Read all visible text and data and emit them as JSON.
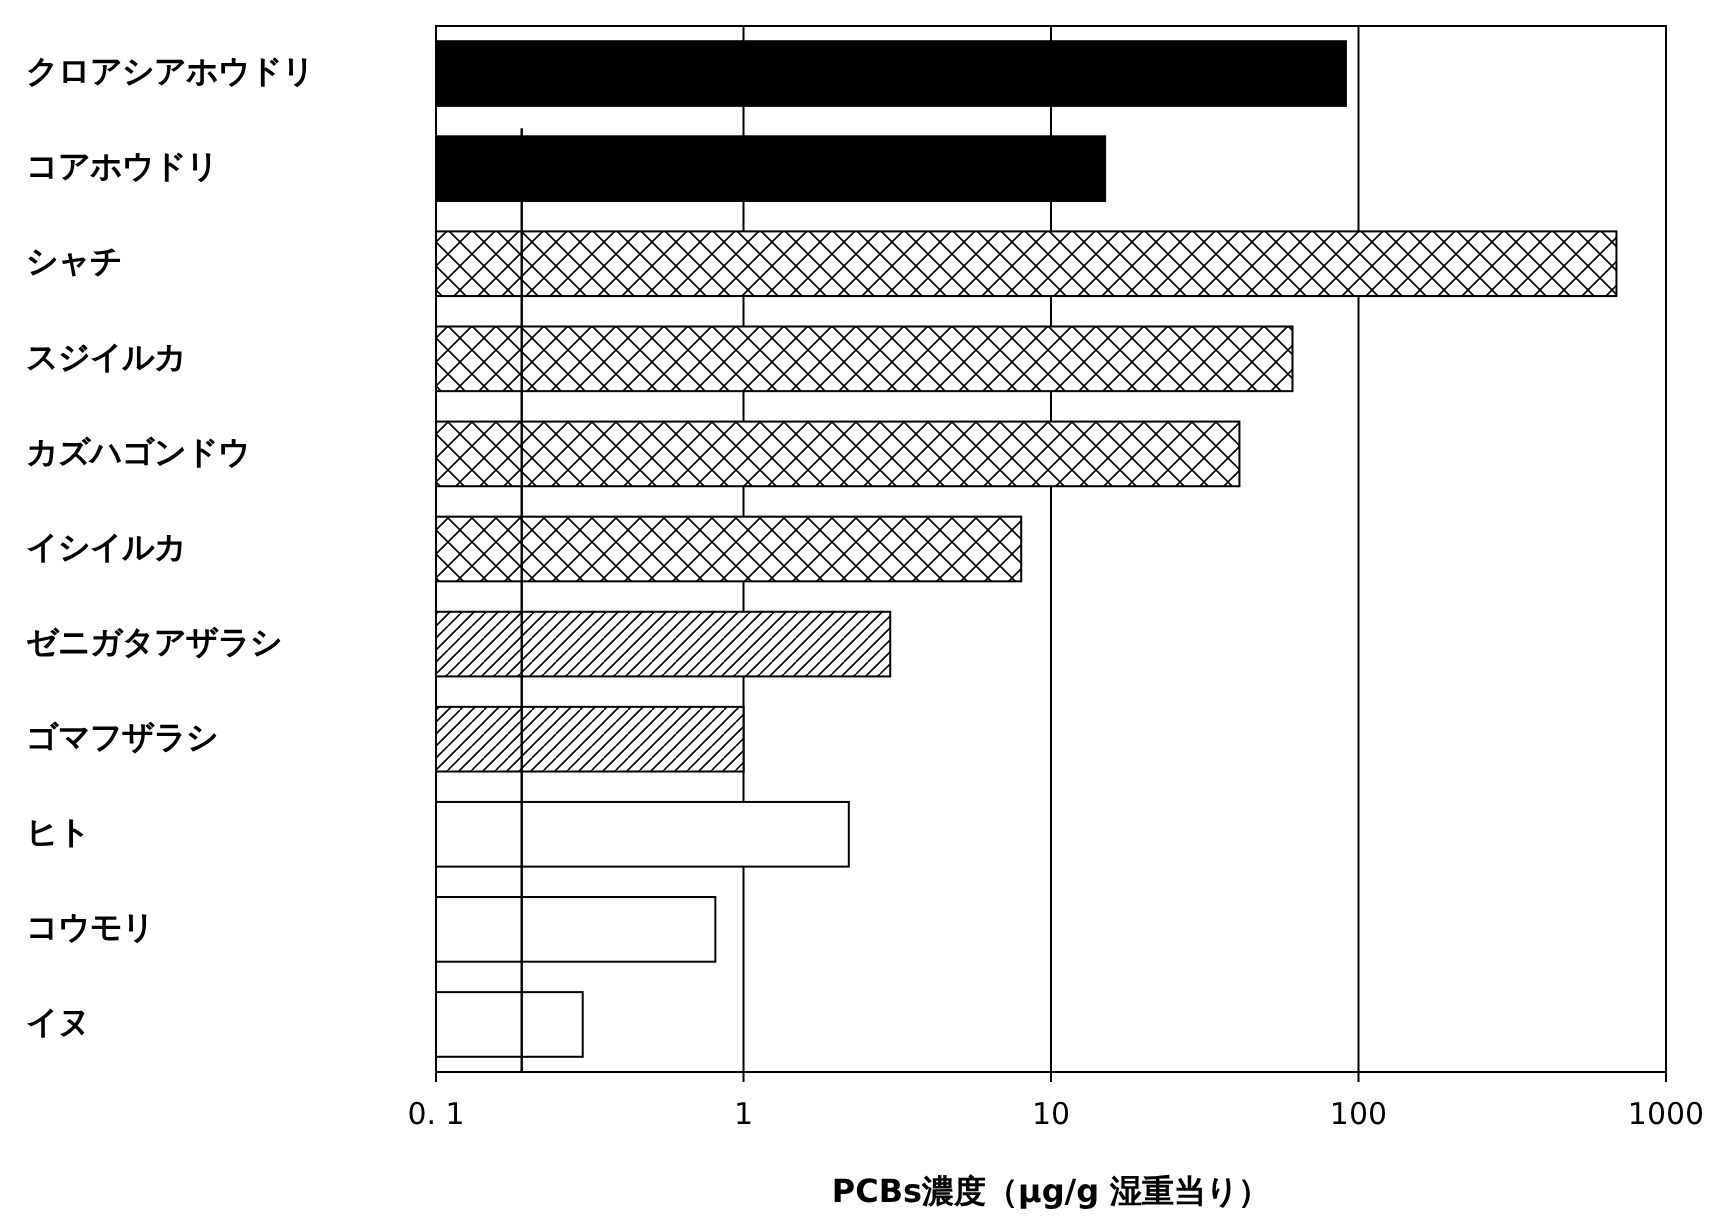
{
  "chart_data": {
    "type": "bar",
    "orientation": "horizontal",
    "stacked": true,
    "log": "x",
    "grid": "x",
    "xlabel": "PCBs濃度（μg/g 湿重当り）",
    "categories": [
      "クロアシアホウドリ",
      "コアホウドリ",
      "シャチ",
      "スジイルカ",
      "カズハゴンドウ",
      "イシイルカ",
      "ゼニガタアザラシ",
      "ゴマフザラシ",
      "ヒト",
      "コウモリ",
      "イヌ"
    ],
    "series": [
      {
        "color": "#000000",
        "values": [
          91,
          15,
          null,
          null,
          null,
          null,
          null,
          null,
          null,
          null,
          null
        ]
      },
      {
        "color": "#000000",
        "values": [
          null,
          null,
          690,
          61,
          41,
          8.0,
          null,
          null,
          null,
          null,
          null
        ]
      },
      {
        "color": "#000000",
        "values": [
          null,
          null,
          null,
          null,
          null,
          null,
          3.0,
          1.0,
          null,
          null,
          null
        ]
      },
      {
        "color": "#ffffff",
        "values": [
          null,
          null,
          null,
          null,
          null,
          null,
          null,
          null,
          2.2,
          0.81,
          0.3
        ]
      }
    ],
    "xlim": [
      0.1,
      1000
    ],
    "xticks": [
      {
        "value": 0.1,
        "label": "0. 1"
      },
      1,
      10,
      100,
      1000
    ],
    "ref_lines": [
      {
        "axis": "x",
        "value": 0.19,
        "color": "#000000"
      }
    ]
  }
}
